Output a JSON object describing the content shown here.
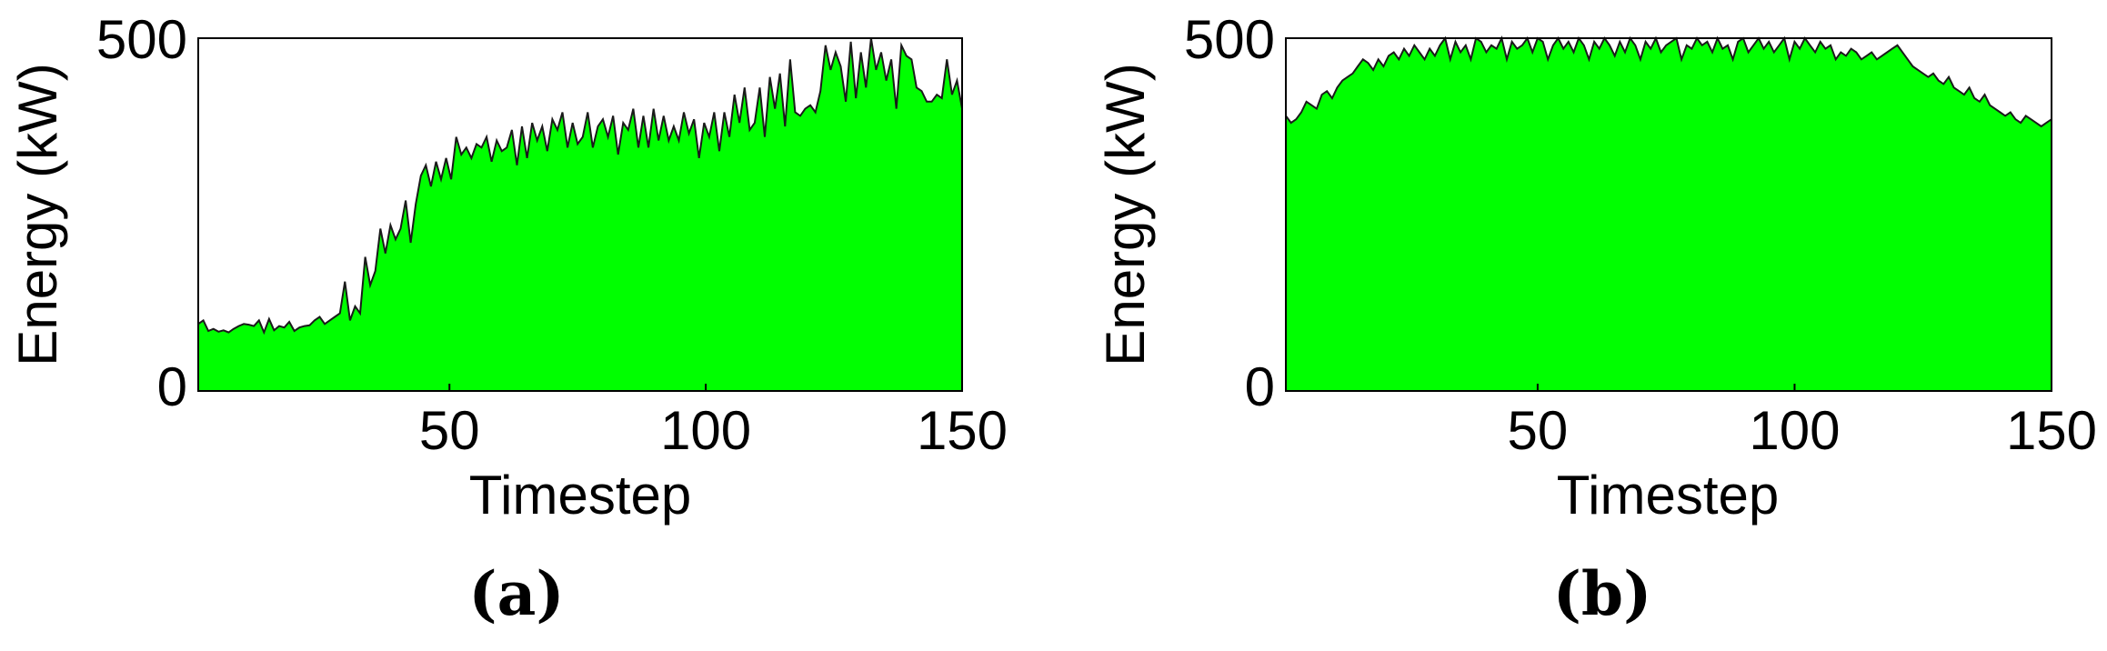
{
  "colors": {
    "fill": "#00ff00",
    "line": "#1a1a1a",
    "axis": "#000000"
  },
  "chart_data": [
    {
      "type": "area",
      "caption": "(a)",
      "xlabel": "Timestep",
      "ylabel": "Energy (kW)",
      "xlim": [
        1,
        150
      ],
      "ylim": [
        0,
        500
      ],
      "xticks": [
        "50",
        "100",
        "150"
      ],
      "xtick_values": [
        50,
        100,
        150
      ],
      "yticks": [
        "0",
        "500"
      ],
      "ytick_values": [
        0,
        500
      ],
      "series": [
        {
          "values": [
            95,
            100,
            85,
            88,
            84,
            86,
            83,
            88,
            92,
            95,
            94,
            92,
            100,
            83,
            102,
            86,
            92,
            90,
            98,
            85,
            90,
            92,
            93,
            100,
            105,
            95,
            100,
            105,
            110,
            155,
            100,
            120,
            110,
            190,
            150,
            170,
            230,
            195,
            235,
            215,
            230,
            270,
            210,
            265,
            305,
            320,
            290,
            325,
            300,
            330,
            300,
            360,
            335,
            345,
            330,
            350,
            345,
            360,
            325,
            355,
            340,
            345,
            370,
            320,
            375,
            330,
            380,
            355,
            375,
            340,
            385,
            370,
            395,
            345,
            380,
            350,
            360,
            395,
            345,
            375,
            385,
            360,
            390,
            335,
            380,
            370,
            400,
            345,
            390,
            345,
            400,
            355,
            390,
            355,
            375,
            355,
            395,
            365,
            385,
            330,
            380,
            360,
            395,
            340,
            395,
            360,
            420,
            380,
            430,
            370,
            380,
            430,
            360,
            445,
            400,
            450,
            375,
            470,
            395,
            390,
            400,
            405,
            395,
            425,
            490,
            455,
            480,
            460,
            410,
            495,
            415,
            480,
            430,
            500,
            455,
            480,
            440,
            470,
            400,
            490,
            475,
            470,
            430,
            425,
            410,
            410,
            420,
            415,
            470,
            420,
            440,
            400
          ]
        }
      ]
    },
    {
      "type": "area",
      "caption": "(b)",
      "xlabel": "Timestep",
      "ylabel": "Energy (kW)",
      "xlim": [
        1,
        150
      ],
      "ylim": [
        0,
        500
      ],
      "xticks": [
        "50",
        "100",
        "150"
      ],
      "xtick_values": [
        50,
        100,
        150
      ],
      "yticks": [
        "0",
        "500"
      ],
      "ytick_values": [
        0,
        500
      ],
      "series": [
        {
          "values": [
            390,
            380,
            385,
            395,
            410,
            405,
            400,
            420,
            425,
            415,
            430,
            440,
            445,
            450,
            460,
            470,
            465,
            455,
            470,
            460,
            475,
            480,
            470,
            485,
            475,
            490,
            480,
            470,
            485,
            475,
            490,
            500,
            470,
            495,
            480,
            490,
            470,
            500,
            495,
            480,
            490,
            485,
            500,
            470,
            495,
            485,
            490,
            500,
            480,
            500,
            495,
            470,
            490,
            500,
            485,
            495,
            480,
            500,
            490,
            470,
            495,
            485,
            500,
            490,
            475,
            495,
            480,
            500,
            490,
            470,
            495,
            485,
            500,
            480,
            490,
            495,
            500,
            470,
            490,
            485,
            500,
            490,
            495,
            480,
            500,
            485,
            490,
            470,
            495,
            500,
            480,
            490,
            500,
            485,
            495,
            480,
            490,
            500,
            470,
            495,
            485,
            500,
            490,
            480,
            495,
            485,
            490,
            470,
            480,
            475,
            485,
            480,
            470,
            475,
            480,
            470,
            475,
            480,
            485,
            490,
            480,
            470,
            460,
            455,
            450,
            445,
            450,
            440,
            435,
            445,
            430,
            425,
            420,
            430,
            415,
            410,
            420,
            405,
            400,
            395,
            390,
            395,
            385,
            380,
            390,
            385,
            380,
            375,
            380,
            385
          ]
        }
      ]
    }
  ]
}
